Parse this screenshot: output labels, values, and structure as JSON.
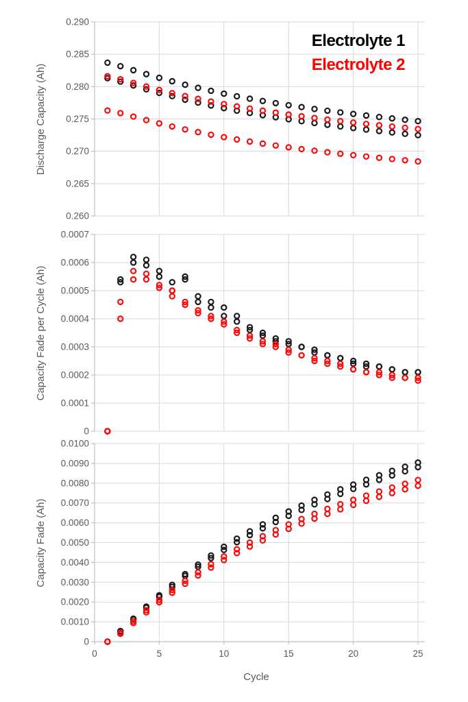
{
  "figure": {
    "background": "#ffffff",
    "grid_color": "#d9d9d9",
    "axis_color": "#bfbfbf",
    "label_color": "#595959"
  },
  "legend": {
    "items": [
      {
        "label": "Electrolyte 1",
        "color": "#000000"
      },
      {
        "label": "Electrolyte 2",
        "color": "#ff0000"
      }
    ],
    "position": "top-right"
  },
  "chart_data": [
    {
      "type": "scatter",
      "panel_id": "discharge-capacity",
      "ylabel": "Discharge Capacity (Ah)",
      "ylim": [
        0.26,
        0.29
      ],
      "yticks": [
        "0.290",
        "0.285",
        "0.280",
        "0.275",
        "0.270",
        "0.265",
        "0.260"
      ],
      "xlim": [
        0,
        25
      ],
      "xgrid": [
        0,
        5,
        10,
        15,
        20,
        25
      ],
      "grid": true,
      "marker": "open-circle",
      "x": [
        1,
        2,
        3,
        4,
        5,
        6,
        7,
        8,
        9,
        10,
        11,
        12,
        13,
        14,
        15,
        16,
        17,
        18,
        19,
        20,
        21,
        22,
        23,
        24,
        25
      ],
      "series": [
        {
          "name": "Electrolyte 1 - cell 1",
          "color": "#1a1a1a",
          "values": [
            0.2837,
            0.28316,
            0.28254,
            0.28193,
            0.28136,
            0.28083,
            0.28029,
            0.27981,
            0.27935,
            0.27891,
            0.2785,
            0.27813,
            0.27778,
            0.27745,
            0.27713,
            0.27683,
            0.27654,
            0.27627,
            0.27601,
            0.27577,
            0.27553,
            0.2753,
            0.27508,
            0.27487,
            0.27466
          ]
        },
        {
          "name": "Electrolyte 1 - cell 2",
          "color": "#1a1a1a",
          "values": [
            0.2813,
            0.28077,
            0.28017,
            0.27958,
            0.27903,
            0.27853,
            0.27798,
            0.27752,
            0.27708,
            0.27667,
            0.27628,
            0.27592,
            0.27558,
            0.27526,
            0.27495,
            0.27465,
            0.27437,
            0.2741,
            0.27384,
            0.27359,
            0.27336,
            0.27313,
            0.27291,
            0.2727,
            0.27249
          ]
        },
        {
          "name": "Electrolyte 2 - cell 1",
          "color": "#fa0a0a",
          "values": [
            0.2816,
            0.28114,
            0.28057,
            0.28001,
            0.27949,
            0.27899,
            0.27853,
            0.2781,
            0.27769,
            0.2773,
            0.27694,
            0.2766,
            0.27628,
            0.27597,
            0.27568,
            0.27541,
            0.27515,
            0.2749,
            0.27466,
            0.27444,
            0.27423,
            0.27402,
            0.27382,
            0.27363,
            0.27344
          ]
        },
        {
          "name": "Electrolyte 2 - cell 2",
          "color": "#fa0a0a",
          "values": [
            0.2763,
            0.2759,
            0.27536,
            0.27482,
            0.27431,
            0.27383,
            0.27338,
            0.27296,
            0.27256,
            0.27218,
            0.27183,
            0.2715,
            0.27119,
            0.27089,
            0.27061,
            0.27034,
            0.27009,
            0.26985,
            0.26962,
            0.2694,
            0.26919,
            0.26899,
            0.2688,
            0.26861,
            0.26843
          ]
        }
      ]
    },
    {
      "type": "scatter",
      "panel_id": "capacity-fade-per-cycle",
      "ylabel": "Capacity Fade per Cycle (Ah)",
      "ylim": [
        0,
        0.0007
      ],
      "yticks": [
        "0.0007",
        "0.0006",
        "0.0005",
        "0.0004",
        "0.0003",
        "0.0002",
        "0.0001",
        "0"
      ],
      "xlim": [
        0,
        25
      ],
      "xgrid": [
        0,
        5,
        10,
        15,
        20,
        25
      ],
      "grid": true,
      "marker": "open-circle",
      "x": [
        1,
        2,
        3,
        4,
        5,
        6,
        7,
        8,
        9,
        10,
        11,
        12,
        13,
        14,
        15,
        16,
        17,
        18,
        19,
        20,
        21,
        22,
        23,
        24,
        25
      ],
      "series": [
        {
          "name": "Electrolyte 1 - cell 1",
          "color": "#1a1a1a",
          "values": [
            0,
            0.00054,
            0.00062,
            0.00061,
            0.00057,
            0.00053,
            0.00054,
            0.00048,
            0.00046,
            0.00044,
            0.00041,
            0.00037,
            0.00035,
            0.00033,
            0.00032,
            0.0003,
            0.00029,
            0.00027,
            0.00026,
            0.00024,
            0.00024,
            0.00023,
            0.00022,
            0.00021,
            0.00021
          ]
        },
        {
          "name": "Electrolyte 1 - cell 2",
          "color": "#1a1a1a",
          "values": [
            0,
            0.00053,
            0.0006,
            0.00059,
            0.00055,
            0.0005,
            0.00055,
            0.00046,
            0.00044,
            0.00041,
            0.00039,
            0.00036,
            0.00034,
            0.00032,
            0.00031,
            0.0003,
            0.00028,
            0.00027,
            0.00026,
            0.00025,
            0.00023,
            0.00023,
            0.00022,
            0.00021,
            0.00021
          ]
        },
        {
          "name": "Electrolyte 2 - cell 1",
          "color": "#fa0a0a",
          "values": [
            0,
            0.00046,
            0.00057,
            0.00056,
            0.00052,
            0.0005,
            0.00046,
            0.00043,
            0.00041,
            0.00039,
            0.00036,
            0.00034,
            0.00032,
            0.00031,
            0.00029,
            0.00027,
            0.00026,
            0.00025,
            0.00024,
            0.00022,
            0.00021,
            0.00021,
            0.0002,
            0.00019,
            0.00019
          ]
        },
        {
          "name": "Electrolyte 2 - cell 2",
          "color": "#fa0a0a",
          "values": [
            0,
            0.0004,
            0.00054,
            0.00054,
            0.00051,
            0.00048,
            0.00045,
            0.00042,
            0.0004,
            0.00038,
            0.00035,
            0.00033,
            0.00031,
            0.0003,
            0.00028,
            0.00027,
            0.00025,
            0.00024,
            0.00023,
            0.00022,
            0.00021,
            0.0002,
            0.00019,
            0.00019,
            0.00018
          ]
        }
      ]
    },
    {
      "type": "scatter",
      "panel_id": "capacity-fade",
      "ylabel": "Capacity Fade (Ah)",
      "xlabel": "Cycle",
      "ylim": [
        0,
        0.01
      ],
      "yticks": [
        "0.0100",
        "0.0090",
        "0.0080",
        "0.0070",
        "0.0060",
        "0.0050",
        "0.0040",
        "0.0030",
        "0.0020",
        "0.0010",
        "0"
      ],
      "xlim": [
        0,
        25
      ],
      "xgrid": [
        0,
        5,
        10,
        15,
        20,
        25
      ],
      "xticks": [
        "0",
        "5",
        "10",
        "15",
        "20",
        "25"
      ],
      "grid": true,
      "marker": "open-circle",
      "x": [
        1,
        2,
        3,
        4,
        5,
        6,
        7,
        8,
        9,
        10,
        11,
        12,
        13,
        14,
        15,
        16,
        17,
        18,
        19,
        20,
        21,
        22,
        23,
        24,
        25
      ],
      "series": [
        {
          "name": "Electrolyte 1 - cell 1",
          "color": "#1a1a1a",
          "values": [
            0,
            0.00054,
            0.00116,
            0.00177,
            0.00234,
            0.00287,
            0.00341,
            0.00389,
            0.00435,
            0.00479,
            0.0052,
            0.00557,
            0.00592,
            0.00625,
            0.00657,
            0.00687,
            0.00716,
            0.00743,
            0.00769,
            0.00793,
            0.00817,
            0.0084,
            0.00862,
            0.00883,
            0.00904
          ]
        },
        {
          "name": "Electrolyte 1 - cell 2",
          "color": "#1a1a1a",
          "values": [
            0,
            0.00053,
            0.00113,
            0.00172,
            0.00227,
            0.00277,
            0.00332,
            0.00378,
            0.00422,
            0.00463,
            0.00502,
            0.00538,
            0.00572,
            0.00604,
            0.00635,
            0.00665,
            0.00693,
            0.0072,
            0.00746,
            0.00771,
            0.00794,
            0.00817,
            0.00839,
            0.0086,
            0.00881
          ]
        },
        {
          "name": "Electrolyte 2 - cell 1",
          "color": "#fa0a0a",
          "values": [
            0,
            0.00046,
            0.00103,
            0.00159,
            0.00211,
            0.00261,
            0.00307,
            0.0035,
            0.00391,
            0.0043,
            0.00466,
            0.005,
            0.00532,
            0.00563,
            0.00592,
            0.00619,
            0.00645,
            0.0067,
            0.00694,
            0.00716,
            0.00737,
            0.00758,
            0.00778,
            0.00797,
            0.00816
          ]
        },
        {
          "name": "Electrolyte 2 - cell 2",
          "color": "#fa0a0a",
          "values": [
            0,
            0.0004,
            0.00094,
            0.00148,
            0.00199,
            0.00247,
            0.00292,
            0.00334,
            0.00374,
            0.00412,
            0.00447,
            0.0048,
            0.00511,
            0.00541,
            0.00569,
            0.00596,
            0.00621,
            0.00645,
            0.00668,
            0.0069,
            0.00711,
            0.00731,
            0.0075,
            0.00769,
            0.00787
          ]
        }
      ]
    }
  ]
}
